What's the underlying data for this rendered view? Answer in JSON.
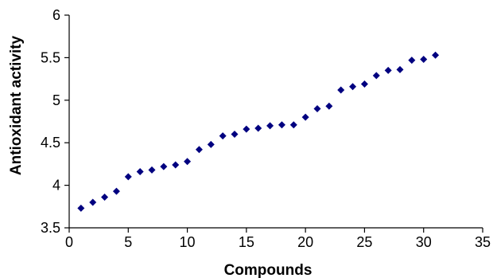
{
  "chart_data": {
    "type": "scatter",
    "title": "",
    "xlabel": "Compounds",
    "ylabel": "Antioxidant activity",
    "xlim": [
      0,
      35
    ],
    "ylim": [
      3.5,
      6
    ],
    "x_ticks": [
      "0",
      "5",
      "10",
      "15",
      "20",
      "25",
      "30",
      "35"
    ],
    "y_ticks": [
      "3.5",
      "4",
      "4.5",
      "5",
      "5.5",
      "6"
    ],
    "grid": false,
    "legend": "none",
    "marker_color": "#000080",
    "marker": "diamond",
    "series": [
      {
        "x": [
          1,
          2,
          3,
          4,
          5,
          6,
          7,
          8,
          9,
          10,
          11,
          12,
          13,
          14,
          15,
          16,
          17,
          18,
          19,
          20,
          21,
          22,
          23,
          24,
          25,
          26,
          27,
          28,
          29,
          30,
          31
        ],
        "y": [
          3.73,
          3.8,
          3.86,
          3.93,
          4.1,
          4.16,
          4.18,
          4.22,
          4.24,
          4.28,
          4.42,
          4.48,
          4.58,
          4.6,
          4.66,
          4.67,
          4.7,
          4.71,
          4.71,
          4.8,
          4.9,
          4.93,
          5.12,
          5.16,
          5.19,
          5.29,
          5.35,
          5.36,
          5.47,
          5.48,
          5.53
        ]
      }
    ]
  }
}
